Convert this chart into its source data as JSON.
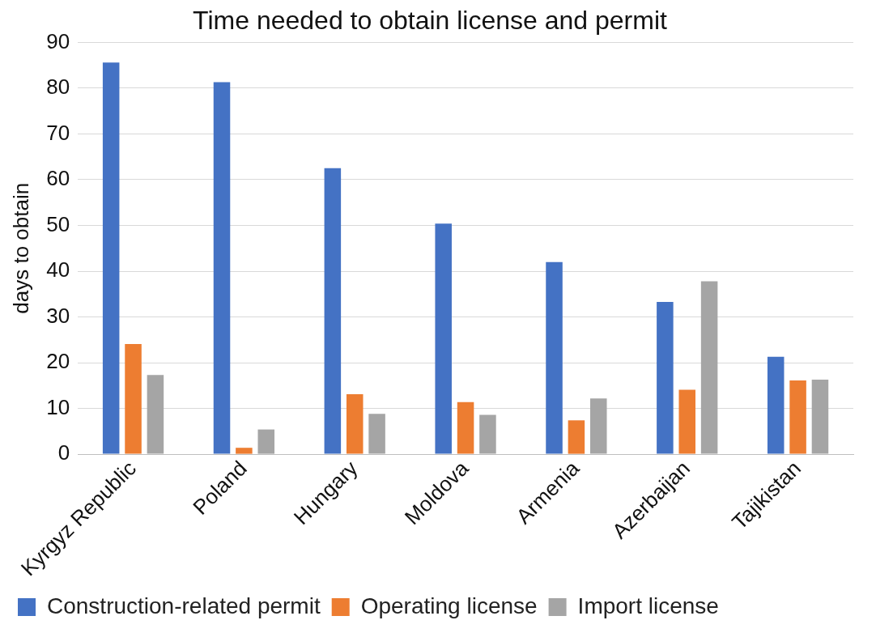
{
  "chart_data": {
    "type": "bar",
    "title": "Time needed to obtain license and permit",
    "ylabel": "days to obtain",
    "categories": [
      "Kyrgyz Republic",
      "Poland",
      "Hungary",
      "Moldova",
      "Armenia",
      "Azerbaijan",
      "Tajikistan"
    ],
    "series": [
      {
        "name": "Construction-related permit",
        "color": "#4472c4",
        "values": [
          85.6,
          81.3,
          62.5,
          50.4,
          42.0,
          33.3,
          21.3
        ]
      },
      {
        "name": "Operating license",
        "color": "#ed7d31",
        "values": [
          24.1,
          1.4,
          13.1,
          11.4,
          7.4,
          14.1,
          16.1
        ]
      },
      {
        "name": "Import license",
        "color": "#a5a5a5",
        "values": [
          17.3,
          5.4,
          8.8,
          8.6,
          12.2,
          37.8,
          16.3
        ]
      }
    ],
    "ylim": [
      0,
      90
    ],
    "yticks": [
      0,
      10,
      20,
      30,
      40,
      50,
      60,
      70,
      80,
      90
    ],
    "grid": "y",
    "legend": "bottom"
  }
}
